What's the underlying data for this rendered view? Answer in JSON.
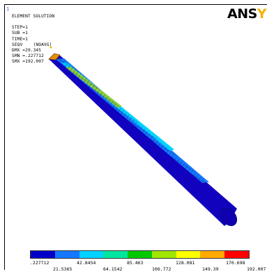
{
  "window_number": "1",
  "header": {
    "title": "ELEMENT SOLUTION",
    "lines": [
      "STEP=1",
      "SUB =1",
      "TIME=1",
      "SEQV    (NOAVG)",
      "DMX =29.345",
      "SMN =.227712",
      "SMX =192.007"
    ]
  },
  "logo": {
    "text_main": "ANS",
    "text_accent": "Y"
  },
  "legend": {
    "colors": [
      "#0000c8",
      "#1478ff",
      "#00d2ff",
      "#00e6a0",
      "#00c800",
      "#a0e600",
      "#ffff00",
      "#ffaa00",
      "#ff0000"
    ],
    "top_labels": [
      ".227712",
      "42.8454",
      "85.463",
      "128.081",
      "170.698"
    ],
    "bottom_labels": [
      "21.5365",
      "64.1542",
      "106.772",
      "149.39",
      "192.007"
    ]
  },
  "model": {
    "base_color": "#1400c8",
    "mesh_color": "#001070",
    "stripe_colors": [
      "#1478ff",
      "#00d2ff",
      "#8ccf3c"
    ]
  }
}
